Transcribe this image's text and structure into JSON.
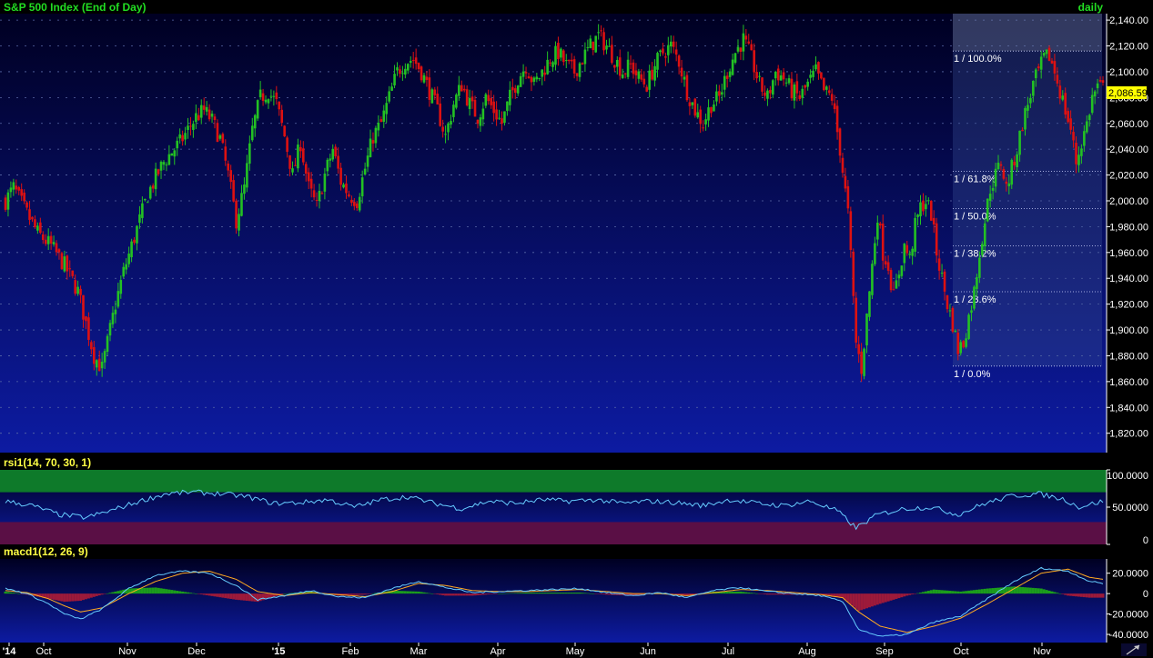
{
  "chart_data": [
    {
      "type": "candlestick",
      "title": "S&P 500 Index (End of Day)",
      "period": "daily",
      "last_price": "2,086.59",
      "y_ticks": [
        "1,820.00",
        "1,840.00",
        "1,860.00",
        "1,880.00",
        "1,900.00",
        "1,920.00",
        "1,940.00",
        "1,960.00",
        "1,980.00",
        "2,000.00",
        "2,020.00",
        "2,040.00",
        "2,060.00",
        "2,080.00",
        "2,100.00",
        "2,120.00",
        "2,140.00"
      ],
      "ylim": [
        1805,
        2145
      ],
      "x_labels": [
        "'14",
        "Oct",
        "Nov",
        "Dec",
        "'15",
        "Feb",
        "Mar",
        "Apr",
        "May",
        "Jun",
        "Jul",
        "Aug",
        "Sep",
        "Oct",
        "Nov"
      ],
      "fibonacci": {
        "range": [
          1872,
          2116
        ],
        "levels": [
          {
            "label": "1 / 100.0%",
            "ratio": 1.0
          },
          {
            "label": "1 / 61.8%",
            "ratio": 0.618
          },
          {
            "label": "1 / 50.0%",
            "ratio": 0.5
          },
          {
            "label": "1 / 38.2%",
            "ratio": 0.382
          },
          {
            "label": "1 / 23.6%",
            "ratio": 0.236
          },
          {
            "label": "1 / 0.0%",
            "ratio": 0.0
          }
        ]
      },
      "close_path": [
        [
          0,
          2000
        ],
        [
          3,
          2010
        ],
        [
          8,
          1990
        ],
        [
          12,
          1975
        ],
        [
          17,
          1965
        ],
        [
          22,
          1950
        ],
        [
          27,
          1930
        ],
        [
          30,
          1905
        ],
        [
          33,
          1880
        ],
        [
          36,
          1870
        ],
        [
          38,
          1890
        ],
        [
          41,
          1920
        ],
        [
          44,
          1945
        ],
        [
          47,
          1965
        ],
        [
          50,
          1985
        ],
        [
          53,
          2005
        ],
        [
          56,
          2018
        ],
        [
          59,
          2030
        ],
        [
          62,
          2038
        ],
        [
          65,
          2045
        ],
        [
          68,
          2055
        ],
        [
          71,
          2065
        ],
        [
          74,
          2070
        ],
        [
          77,
          2062
        ],
        [
          80,
          2048
        ],
        [
          83,
          2020
        ],
        [
          86,
          1985
        ],
        [
          89,
          2010
        ],
        [
          92,
          2055
        ],
        [
          95,
          2080
        ],
        [
          98,
          2085
        ],
        [
          101,
          2075
        ],
        [
          104,
          2050
        ],
        [
          107,
          2020
        ],
        [
          110,
          2045
        ],
        [
          113,
          2010
        ],
        [
          116,
          1995
        ],
        [
          119,
          2020
        ],
        [
          122,
          2040
        ],
        [
          125,
          2015
        ],
        [
          128,
          2005
        ],
        [
          131,
          2000
        ],
        [
          134,
          2025
        ],
        [
          137,
          2050
        ],
        [
          140,
          2060
        ],
        [
          143,
          2080
        ],
        [
          146,
          2100
        ],
        [
          149,
          2108
        ],
        [
          152,
          2110
        ],
        [
          155,
          2100
        ],
        [
          158,
          2085
        ],
        [
          161,
          2070
        ],
        [
          164,
          2050
        ],
        [
          167,
          2075
        ],
        [
          170,
          2090
        ],
        [
          173,
          2075
        ],
        [
          176,
          2065
        ],
        [
          179,
          2080
        ],
        [
          182,
          2070
        ],
        [
          185,
          2060
        ],
        [
          188,
          2080
        ],
        [
          191,
          2095
        ],
        [
          194,
          2105
        ],
        [
          197,
          2090
        ],
        [
          200,
          2100
        ],
        [
          203,
          2110
        ],
        [
          206,
          2115
        ],
        [
          209,
          2105
        ],
        [
          212,
          2100
        ],
        [
          215,
          2110
        ],
        [
          218,
          2120
        ],
        [
          221,
          2128
        ],
        [
          224,
          2120
        ],
        [
          227,
          2110
        ],
        [
          230,
          2100
        ],
        [
          233,
          2105
        ],
        [
          236,
          2095
        ],
        [
          239,
          2090
        ],
        [
          242,
          2105
        ],
        [
          245,
          2115
        ],
        [
          248,
          2120
        ],
        [
          251,
          2108
        ],
        [
          254,
          2085
        ],
        [
          257,
          2070
        ],
        [
          260,
          2060
        ],
        [
          263,
          2075
        ],
        [
          266,
          2080
        ],
        [
          269,
          2100
        ],
        [
          272,
          2115
        ],
        [
          275,
          2125
        ],
        [
          278,
          2110
        ],
        [
          281,
          2090
        ],
        [
          284,
          2080
        ],
        [
          287,
          2100
        ],
        [
          290,
          2095
        ],
        [
          293,
          2085
        ],
        [
          296,
          2080
        ],
        [
          299,
          2090
        ],
        [
          302,
          2100
        ],
        [
          305,
          2085
        ],
        [
          308,
          2080
        ],
        [
          311,
          2040
        ],
        [
          314,
          1990
        ],
        [
          317,
          1890
        ],
        [
          319,
          1870
        ],
        [
          321,
          1910
        ],
        [
          323,
          1950
        ],
        [
          325,
          1990
        ],
        [
          327,
          1960
        ],
        [
          329,
          1950
        ],
        [
          331,
          1925
        ],
        [
          333,
          1945
        ],
        [
          335,
          1965
        ],
        [
          337,
          1955
        ],
        [
          339,
          1980
        ],
        [
          341,
          1995
        ],
        [
          343,
          2000
        ],
        [
          345,
          1990
        ],
        [
          347,
          1960
        ],
        [
          349,
          1940
        ],
        [
          351,
          1920
        ],
        [
          353,
          1905
        ],
        [
          355,
          1885
        ],
        [
          357,
          1890
        ],
        [
          359,
          1910
        ],
        [
          361,
          1930
        ],
        [
          363,
          1960
        ],
        [
          365,
          1985
        ],
        [
          367,
          2010
        ],
        [
          369,
          2020
        ],
        [
          371,
          2030
        ],
        [
          373,
          2010
        ],
        [
          375,
          2025
        ],
        [
          377,
          2040
        ],
        [
          379,
          2060
        ],
        [
          381,
          2075
        ],
        [
          383,
          2090
        ],
        [
          385,
          2100
        ],
        [
          387,
          2110
        ],
        [
          389,
          2112
        ],
        [
          391,
          2100
        ],
        [
          393,
          2085
        ],
        [
          395,
          2070
        ],
        [
          397,
          2055
        ],
        [
          399,
          2030
        ],
        [
          401,
          2045
        ],
        [
          403,
          2060
        ],
        [
          405,
          2080
        ],
        [
          407,
          2088
        ],
        [
          409,
          2087
        ]
      ]
    },
    {
      "type": "line",
      "title": "rsi1(14, 70, 30, 1)",
      "y_ticks": [
        "100.0000",
        "50.0000",
        "0"
      ],
      "ylim": [
        0,
        100
      ],
      "overbought": 70,
      "oversold": 30,
      "series": [
        {
          "values": [
            [
              0,
              58
            ],
            [
              10,
              52
            ],
            [
              20,
              40
            ],
            [
              30,
              36
            ],
            [
              40,
              46
            ],
            [
              50,
              58
            ],
            [
              60,
              68
            ],
            [
              70,
              70
            ],
            [
              80,
              68
            ],
            [
              90,
              64
            ],
            [
              100,
              55
            ],
            [
              110,
              56
            ],
            [
              120,
              60
            ],
            [
              130,
              50
            ],
            [
              140,
              60
            ],
            [
              150,
              64
            ],
            [
              160,
              55
            ],
            [
              170,
              48
            ],
            [
              180,
              58
            ],
            [
              190,
              55
            ],
            [
              200,
              60
            ],
            [
              210,
              58
            ],
            [
              220,
              60
            ],
            [
              230,
              55
            ],
            [
              240,
              58
            ],
            [
              250,
              56
            ],
            [
              260,
              52
            ],
            [
              270,
              60
            ],
            [
              280,
              55
            ],
            [
              290,
              52
            ],
            [
              300,
              58
            ],
            [
              310,
              45
            ],
            [
              317,
              22
            ],
            [
              325,
              40
            ],
            [
              335,
              48
            ],
            [
              345,
              50
            ],
            [
              355,
              40
            ],
            [
              365,
              55
            ],
            [
              375,
              65
            ],
            [
              385,
              68
            ],
            [
              395,
              60
            ],
            [
              400,
              50
            ],
            [
              409,
              58
            ]
          ]
        }
      ]
    },
    {
      "type": "line",
      "title": "macd1(12, 26, 9)",
      "y_ticks": [
        "20.0000",
        "0",
        "-20.0000",
        "-40.0000"
      ],
      "ylim": [
        -48,
        34
      ],
      "series": [
        {
          "values": [
            [
              0,
              5
            ],
            [
              8,
              0
            ],
            [
              16,
              -10
            ],
            [
              22,
              -20
            ],
            [
              28,
              -25
            ],
            [
              36,
              -15
            ],
            [
              46,
              5
            ],
            [
              56,
              18
            ],
            [
              66,
              22
            ],
            [
              76,
              20
            ],
            [
              86,
              8
            ],
            [
              94,
              -6
            ],
            [
              104,
              -2
            ],
            [
              114,
              3
            ],
            [
              124,
              -3
            ],
            [
              134,
              -4
            ],
            [
              144,
              5
            ],
            [
              154,
              12
            ],
            [
              164,
              6
            ],
            [
              174,
              1
            ],
            [
              184,
              2
            ],
            [
              194,
              3
            ],
            [
              204,
              4
            ],
            [
              214,
              5
            ],
            [
              224,
              1
            ],
            [
              234,
              -2
            ],
            [
              244,
              1
            ],
            [
              254,
              -4
            ],
            [
              264,
              3
            ],
            [
              274,
              6
            ],
            [
              284,
              2
            ],
            [
              294,
              0
            ],
            [
              304,
              -2
            ],
            [
              312,
              -8
            ],
            [
              318,
              -35
            ],
            [
              326,
              -42
            ],
            [
              336,
              -40
            ],
            [
              346,
              -28
            ],
            [
              356,
              -22
            ],
            [
              366,
              -5
            ],
            [
              376,
              12
            ],
            [
              386,
              25
            ],
            [
              396,
              22
            ],
            [
              404,
              12
            ],
            [
              409,
              10
            ]
          ]
        },
        {
          "values": [
            [
              0,
              3
            ],
            [
              8,
              1
            ],
            [
              16,
              -5
            ],
            [
              22,
              -12
            ],
            [
              28,
              -18
            ],
            [
              36,
              -14
            ],
            [
              46,
              0
            ],
            [
              56,
              12
            ],
            [
              66,
              20
            ],
            [
              76,
              22
            ],
            [
              86,
              14
            ],
            [
              94,
              2
            ],
            [
              104,
              -2
            ],
            [
              114,
              1
            ],
            [
              124,
              -1
            ],
            [
              134,
              -3
            ],
            [
              144,
              2
            ],
            [
              154,
              10
            ],
            [
              164,
              8
            ],
            [
              174,
              3
            ],
            [
              184,
              2
            ],
            [
              194,
              2
            ],
            [
              204,
              3
            ],
            [
              214,
              4
            ],
            [
              224,
              2
            ],
            [
              234,
              0
            ],
            [
              244,
              0
            ],
            [
              254,
              -2
            ],
            [
              264,
              1
            ],
            [
              274,
              4
            ],
            [
              284,
              3
            ],
            [
              294,
              1
            ],
            [
              304,
              -1
            ],
            [
              312,
              -4
            ],
            [
              318,
              -18
            ],
            [
              326,
              -32
            ],
            [
              336,
              -38
            ],
            [
              346,
              -32
            ],
            [
              356,
              -24
            ],
            [
              366,
              -10
            ],
            [
              376,
              5
            ],
            [
              386,
              20
            ],
            [
              396,
              24
            ],
            [
              404,
              16
            ],
            [
              409,
              14
            ]
          ]
        }
      ]
    }
  ],
  "colors": {
    "bg_top": "#010124",
    "bg_bottom": "#0d1aa0",
    "up": "#23c123",
    "down": "#dd1111",
    "title_green": "#22dd22",
    "title_yellow": "#ffff44",
    "rsi_line": "#66ccff",
    "macd_line": "#66ccff",
    "signal_line": "#ffaa22",
    "hist_pos": "#1c9d1c",
    "hist_neg": "#9d1a3a"
  }
}
